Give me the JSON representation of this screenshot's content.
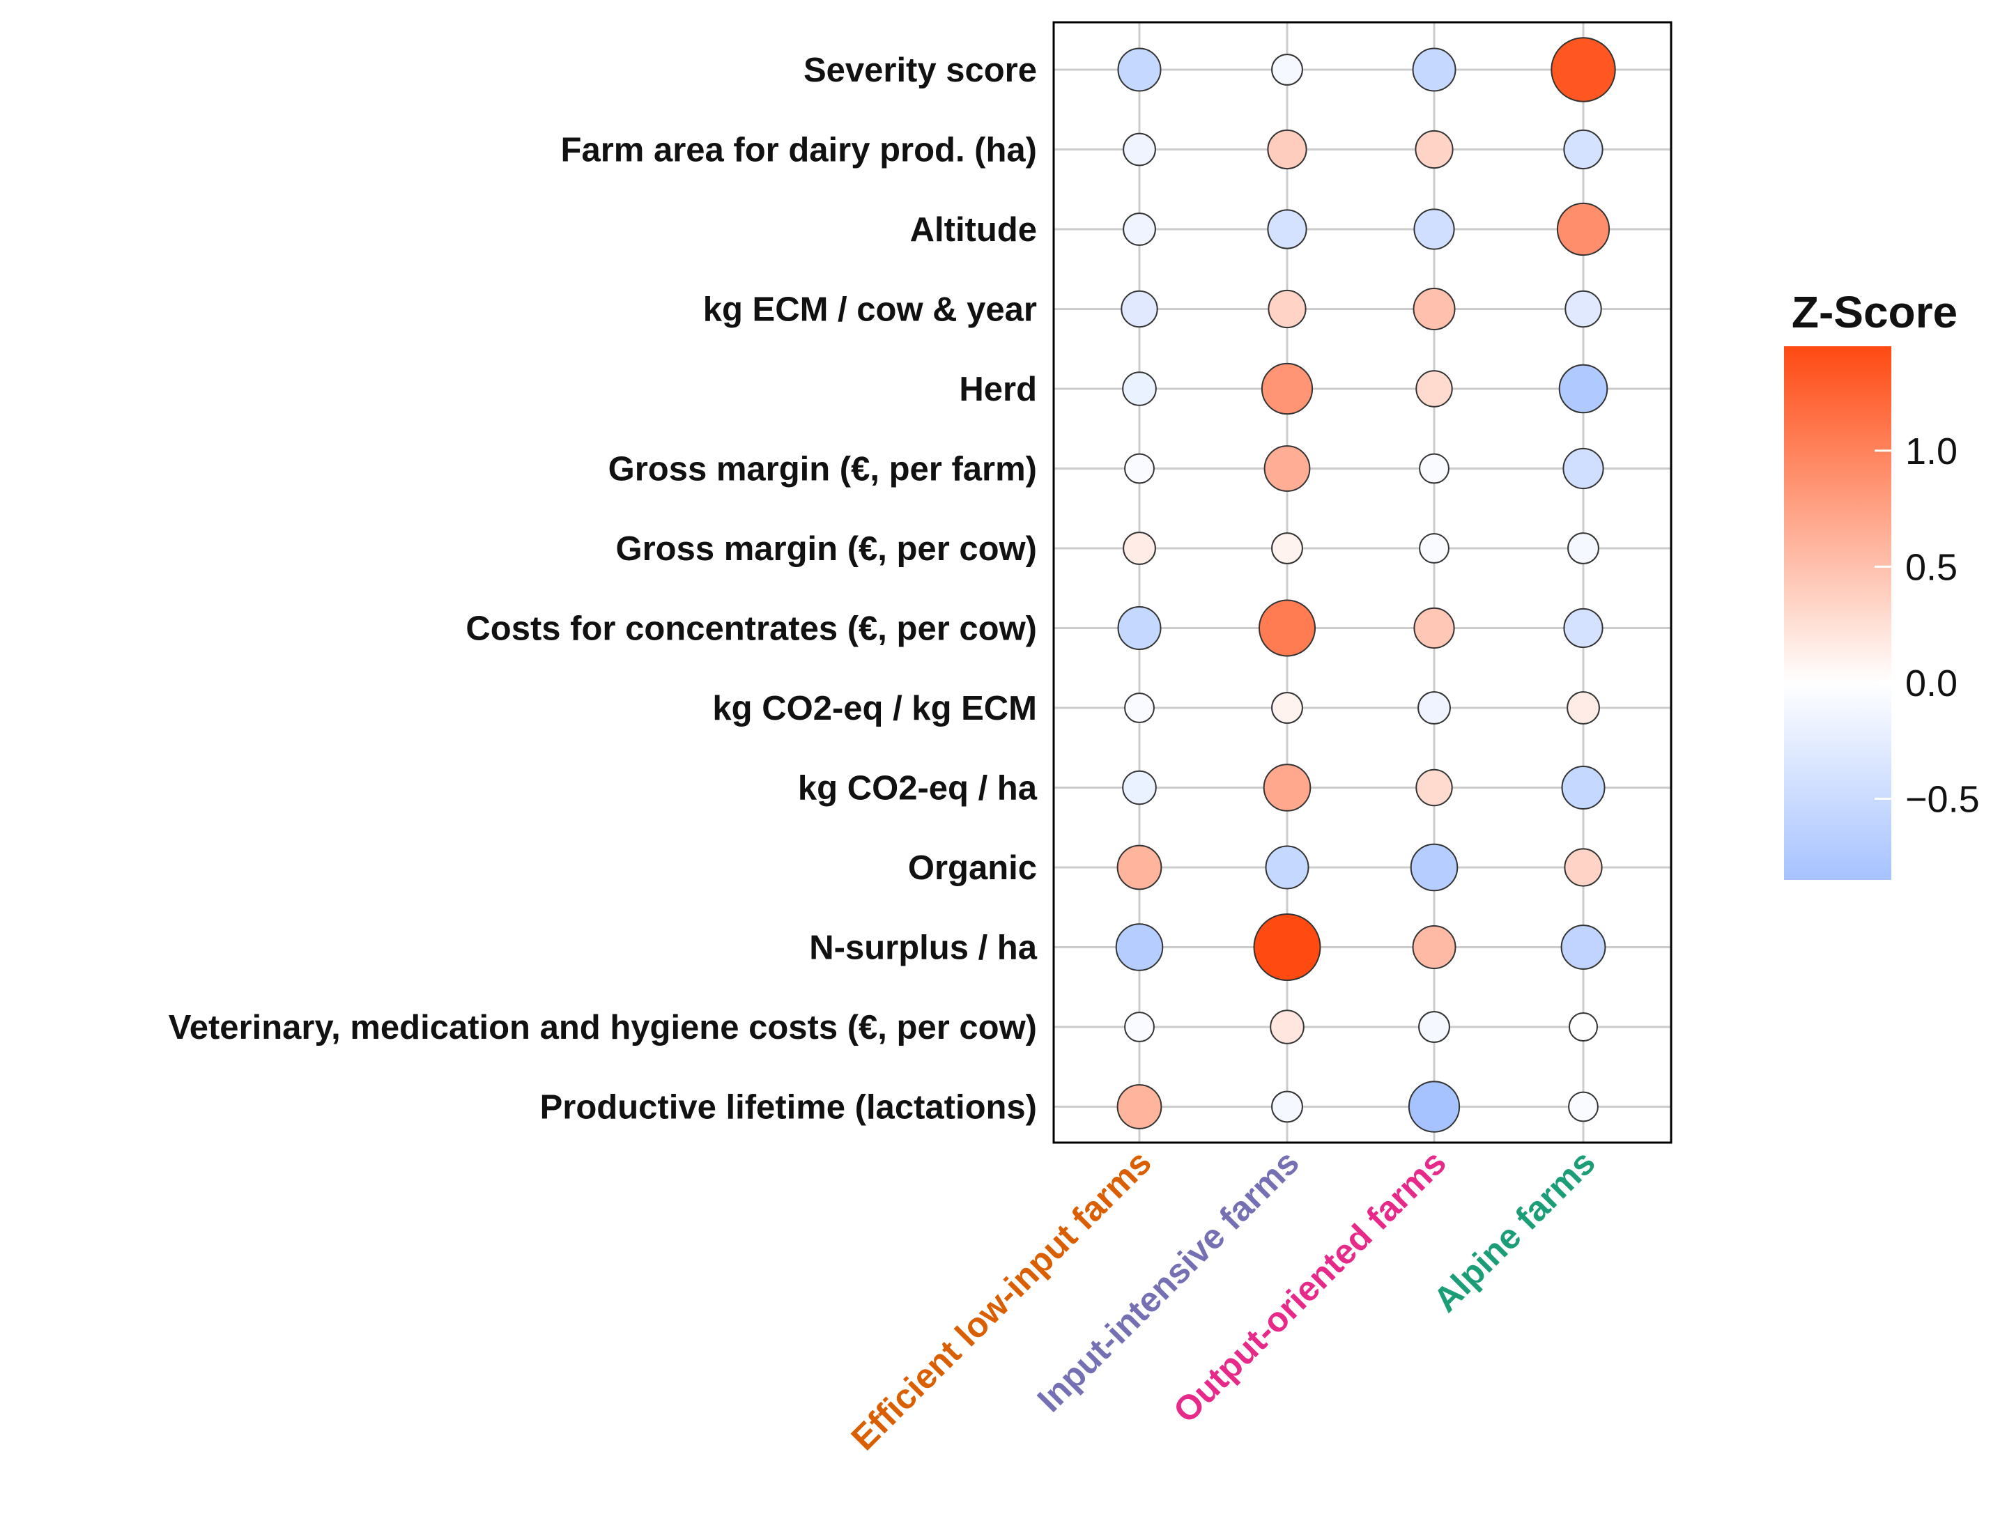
{
  "chart_data": {
    "type": "bubble-matrix",
    "rows": [
      "Severity score",
      "Farm area for dairy prod.  (ha)",
      "Altitude",
      "kg ECM / cow & year",
      "Herd",
      "Gross margin (€, per farm)",
      "Gross margin (€, per cow)",
      "Costs for concentrates (€, per cow)",
      "kg CO2-eq / kg ECM",
      "kg CO2-eq / ha",
      "Organic",
      "N-surplus / ha",
      "Veterinary, medication and hygiene costs (€, per cow)",
      "Productive lifetime (lactations)"
    ],
    "columns": [
      {
        "name": "Efficient low-input farms",
        "color": "#d95f02"
      },
      {
        "name": "Input-intensive farms",
        "color": "#7570b3"
      },
      {
        "name": "Output-oriented farms",
        "color": "#e7298a"
      },
      {
        "name": "Alpine farms",
        "color": "#1b9e77"
      }
    ],
    "values": [
      [
        -0.55,
        -0.1,
        -0.55,
        1.35
      ],
      [
        -0.15,
        0.4,
        0.35,
        -0.4
      ],
      [
        -0.15,
        -0.4,
        -0.45,
        0.9
      ],
      [
        -0.3,
        0.35,
        0.5,
        -0.3
      ],
      [
        -0.2,
        0.85,
        0.3,
        -0.75
      ],
      [
        -0.05,
        0.65,
        -0.05,
        -0.45
      ],
      [
        0.15,
        0.1,
        -0.05,
        -0.1
      ],
      [
        -0.55,
        1.05,
        0.45,
        -0.4
      ],
      [
        -0.05,
        0.1,
        -0.15,
        0.15
      ],
      [
        -0.2,
        0.7,
        0.3,
        -0.55
      ],
      [
        0.6,
        -0.55,
        -0.7,
        0.35
      ],
      [
        -0.7,
        1.45,
        0.55,
        -0.6
      ],
      [
        -0.05,
        0.2,
        -0.1,
        0.0
      ],
      [
        0.6,
        -0.1,
        -0.85,
        -0.05
      ]
    ],
    "legend": {
      "title": "Z-Score",
      "ticks": [
        {
          "value": 1.0,
          "label": "1.0"
        },
        {
          "value": 0.5,
          "label": "0.5"
        },
        {
          "value": 0.0,
          "label": "0.0"
        },
        {
          "value": -0.5,
          "label": "−0.5"
        }
      ],
      "range": [
        -0.85,
        1.45
      ],
      "low_color": "#a6c2ff",
      "mid_color": "#ffffff",
      "high_color": "#ff4a12",
      "placement": "right"
    },
    "grid": true,
    "size_encodes": "absolute z-score"
  }
}
